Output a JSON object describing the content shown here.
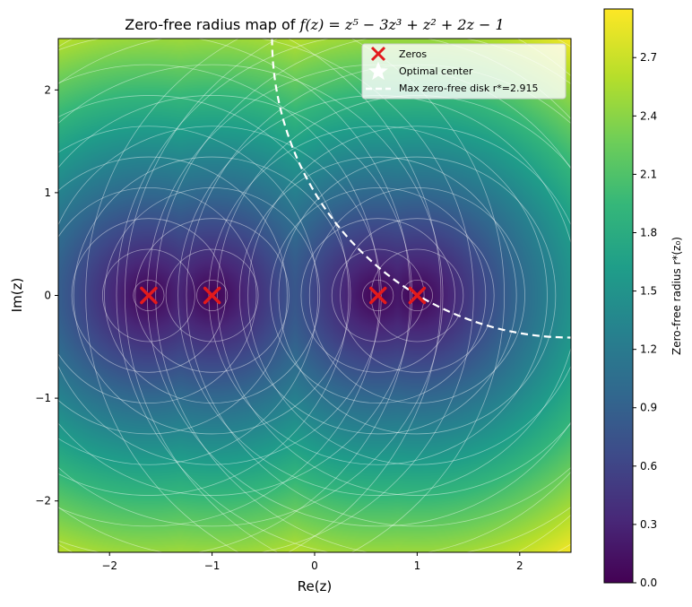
{
  "chart_data": {
    "type": "heatmap",
    "title_text": "Zero-free radius map of ",
    "title_math": "f(z) = z⁵ − 3z³ + z² + 2z − 1",
    "xlabel": "Re(z)",
    "ylabel": "Im(z)",
    "xlim": [
      -2.5,
      2.5
    ],
    "ylim": [
      -2.5,
      2.5
    ],
    "xticks": [
      -2,
      -1,
      0,
      1,
      2
    ],
    "yticks": [
      -2,
      -1,
      0,
      1,
      2
    ],
    "xtick_labels": [
      "−2",
      "−1",
      "0",
      "1",
      "2"
    ],
    "ytick_labels": [
      "−2",
      "−1",
      "0",
      "1",
      "2"
    ],
    "zeros": [
      {
        "re": -1.618,
        "im": 0
      },
      {
        "re": -1.0,
        "im": 0
      },
      {
        "re": 0.618,
        "im": 0
      },
      {
        "re": 1.0,
        "im": 0
      }
    ],
    "optimal_center": {
      "re": 2.5,
      "im": 2.5
    },
    "max_radius": 2.915,
    "legend": {
      "position": "upper right",
      "entries": [
        "Zeros",
        "Optimal center",
        "Max zero-free disk  r*=2.915"
      ]
    },
    "colorbar": {
      "label": "Zero-free radius r*(z₀)",
      "min": 0.0,
      "max": 2.95,
      "ticks": [
        0.0,
        0.3,
        0.6,
        0.9,
        1.2,
        1.5,
        1.8,
        2.1,
        2.4,
        2.7
      ],
      "tick_labels": [
        "0.0",
        "0.3",
        "0.6",
        "0.9",
        "1.2",
        "1.5",
        "1.8",
        "2.1",
        "2.4",
        "2.7"
      ]
    },
    "contour_levels": [
      0.15,
      0.45,
      0.75,
      1.05,
      1.35,
      1.65,
      1.95,
      2.25,
      2.55,
      2.85
    ],
    "colormap": "viridis",
    "colors": {
      "zero_marker": "#e31a1c",
      "disk_boundary": "#ffffff",
      "contour_line": "#ffffff"
    }
  }
}
